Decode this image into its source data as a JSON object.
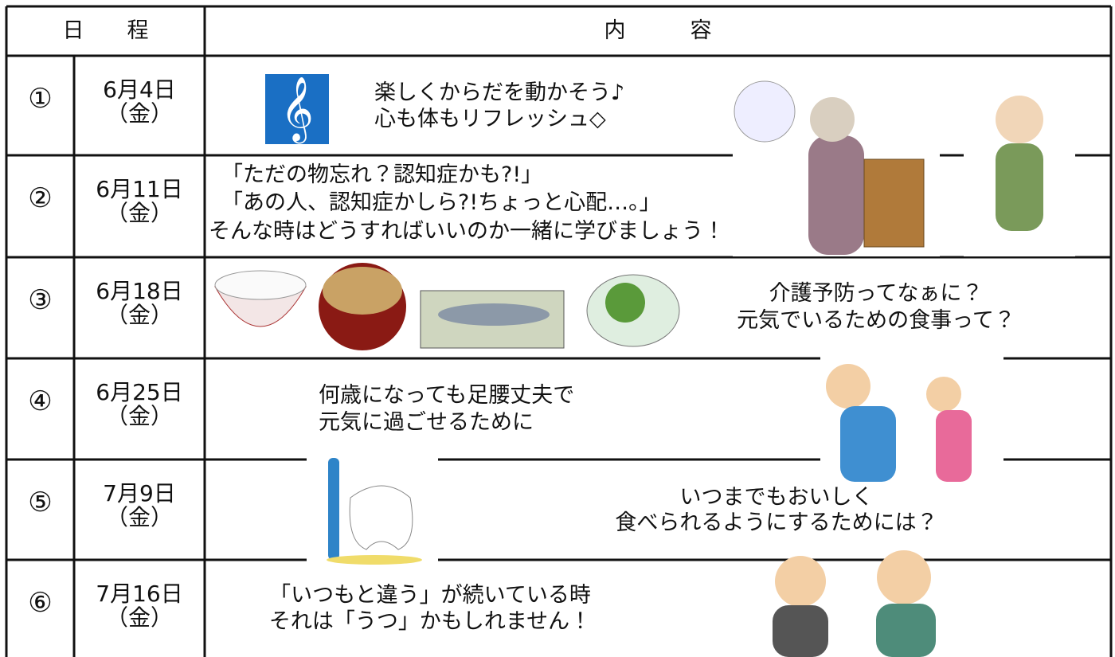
{
  "header": {
    "schedule": "日　　程",
    "content": "内　　　容"
  },
  "rows": [
    {
      "number": "①",
      "date": "6月4日",
      "weekday": "（金）",
      "lines": [
        "楽しくからだを動かそう♪",
        "心も体もリフレッシュ◇"
      ]
    },
    {
      "number": "②",
      "date": "6月11日",
      "weekday": "（金）",
      "lines": [
        "「ただの物忘れ？認知症かも?!」",
        "「あの人、認知症かしら?!ちょっと心配…。」",
        "そんな時はどうすればいいのか一緒に学びましょう！"
      ]
    },
    {
      "number": "③",
      "date": "6月18日",
      "weekday": "（金）",
      "lines": [
        "介護予防ってなぁに？",
        "元気でいるための食事って？"
      ]
    },
    {
      "number": "④",
      "date": "6月25日",
      "weekday": "（金）",
      "lines": [
        "何歳になっても足腰丈夫で",
        "元気に過ごせるために"
      ]
    },
    {
      "number": "⑤",
      "date": "7月9日",
      "weekday": "（金）",
      "lines": [
        "いつまでもおいしく",
        "食べられるようにするためには？"
      ]
    },
    {
      "number": "⑥",
      "date": "7月16日",
      "weekday": "（金）",
      "lines": [
        "「いつもと違う」が続いている時",
        "それは「うつ」かもしれません！"
      ]
    }
  ]
}
